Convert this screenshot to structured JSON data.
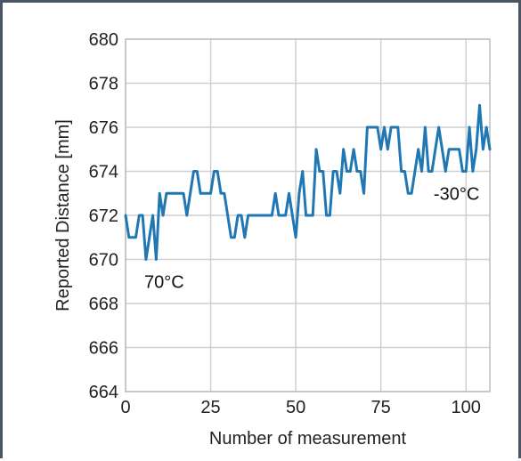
{
  "chart_data": {
    "type": "line",
    "title": "",
    "xlabel": "Number of measurement",
    "ylabel": "Reported Distance [mm]",
    "xlim": [
      0,
      107
    ],
    "ylim": [
      664,
      680
    ],
    "xticks": [
      0,
      25,
      50,
      75,
      100
    ],
    "yticks": [
      664,
      666,
      668,
      670,
      672,
      674,
      676,
      678,
      680
    ],
    "grid": true,
    "line_color": "#1f77b4",
    "series": [
      {
        "values": [
          672,
          671,
          671,
          671,
          672,
          672,
          670,
          671,
          672,
          670,
          673,
          672,
          673,
          673,
          673,
          673,
          673,
          673,
          672,
          673,
          674,
          674,
          673,
          673,
          673,
          673,
          674,
          674,
          673,
          673,
          672,
          671,
          671,
          672,
          672,
          671,
          672,
          672,
          672,
          672,
          672,
          672,
          672,
          672,
          673,
          672,
          672,
          672,
          673,
          672,
          671,
          673,
          674,
          672,
          672,
          672,
          675,
          674,
          674,
          672,
          672,
          674,
          674,
          673,
          675,
          674,
          674,
          675,
          674,
          674,
          673,
          676,
          676,
          676,
          676,
          675,
          676,
          675,
          676,
          676,
          676,
          674,
          674,
          673,
          673,
          674,
          675,
          674,
          676,
          674,
          674,
          675,
          676,
          675,
          674,
          675,
          675,
          675,
          675,
          674,
          674,
          676,
          674,
          675,
          677,
          675,
          676,
          675
        ]
      }
    ],
    "annotations": [
      {
        "text": "70°C",
        "x": 5.5,
        "y": 669.0
      },
      {
        "text": "-30°C",
        "x": 90.5,
        "y": 673.0
      }
    ]
  }
}
